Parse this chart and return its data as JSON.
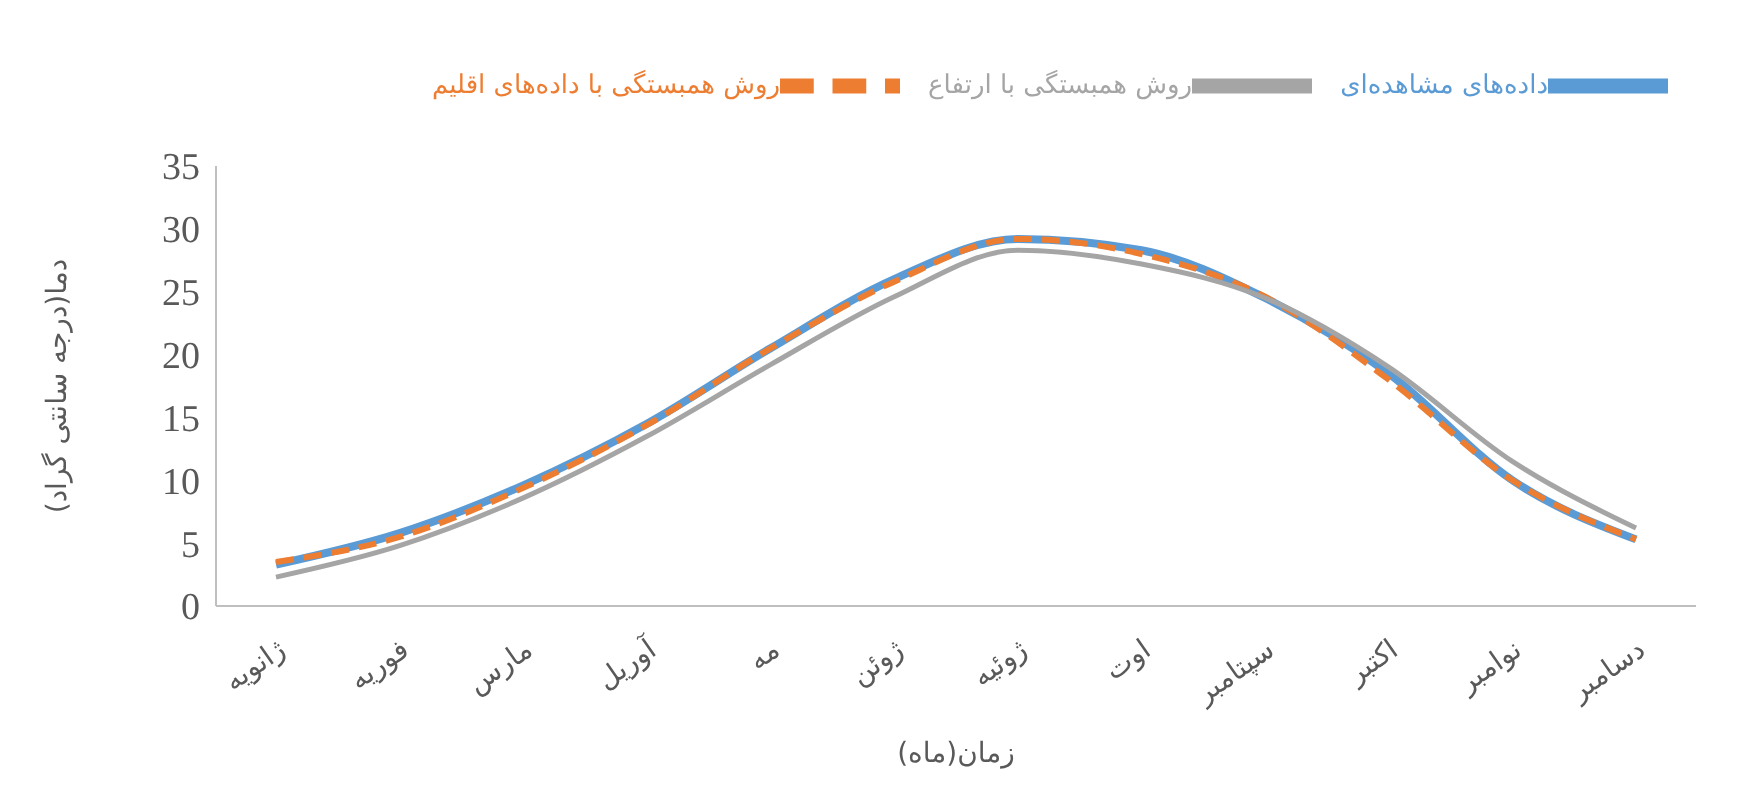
{
  "chart_data": {
    "type": "line",
    "xlabel": "زمان(ماه)",
    "ylabel": "دما(درجه سانتی گراد)",
    "categories": [
      "ژانویه",
      "فوریه",
      "مارس",
      "آوریل",
      "مه",
      "ژوئن",
      "ژوئیه",
      "اوت",
      "سپتامبر",
      "اکتبر",
      "نوامبر",
      "دسامبر"
    ],
    "ylim": [
      0,
      35
    ],
    "yticks": [
      0,
      5,
      10,
      15,
      20,
      25,
      30,
      35
    ],
    "grid": false,
    "legend": "top",
    "marker": "none",
    "series": [
      {
        "name": "داده‌های مشاهده‌ای",
        "color": "#5b9bd5",
        "line_style": "solid",
        "values": [
          3.3,
          5.8,
          9.6,
          14.5,
          20.5,
          26,
          29.2,
          28.3,
          24.5,
          18.5,
          10,
          5.3
        ]
      },
      {
        "name": "روش همبستگی با داده‌های اقلیم",
        "color": "#ed7d31",
        "line_style": "dashed",
        "values": [
          3.5,
          5.5,
          9.4,
          14.4,
          20.5,
          25.8,
          29.2,
          28,
          24.6,
          18,
          10,
          5.3
        ]
      },
      {
        "name": "روش همبستگی با ارتفاع",
        "color": "#a5a5a5",
        "line_style": "solid",
        "values": [
          2.3,
          4.8,
          8.6,
          13.5,
          19.2,
          24.6,
          28.3,
          27.2,
          24.5,
          19,
          11.5,
          6.2
        ]
      }
    ]
  }
}
